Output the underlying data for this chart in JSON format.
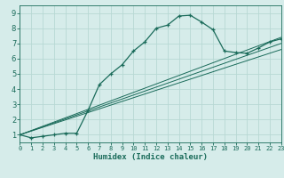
{
  "title": "",
  "xlabel": "Humidex (Indice chaleur)",
  "bg_color": "#d6ecea",
  "grid_color": "#b8d8d4",
  "line_color": "#1a6b5a",
  "xlim": [
    0,
    23
  ],
  "ylim": [
    0.5,
    9.5
  ],
  "xticks": [
    0,
    1,
    2,
    3,
    4,
    5,
    6,
    7,
    8,
    9,
    10,
    11,
    12,
    13,
    14,
    15,
    16,
    17,
    18,
    19,
    20,
    21,
    22,
    23
  ],
  "yticks": [
    1,
    2,
    3,
    4,
    5,
    6,
    7,
    8,
    9
  ],
  "main_x": [
    0,
    1,
    2,
    3,
    4,
    5,
    6,
    7,
    8,
    9,
    10,
    11,
    12,
    13,
    14,
    15,
    16,
    17,
    18,
    19,
    20,
    21,
    22,
    23
  ],
  "main_y": [
    1.0,
    0.8,
    0.9,
    1.0,
    1.1,
    1.1,
    2.6,
    4.3,
    5.0,
    5.6,
    6.5,
    7.1,
    8.0,
    8.2,
    8.8,
    8.85,
    8.4,
    7.9,
    6.5,
    6.4,
    6.35,
    6.7,
    7.1,
    7.3
  ],
  "line1_x": [
    0,
    23
  ],
  "line1_y": [
    1.0,
    7.4
  ],
  "line2_x": [
    0,
    23
  ],
  "line2_y": [
    1.0,
    7.0
  ],
  "line3_x": [
    0,
    23
  ],
  "line3_y": [
    1.0,
    6.6
  ]
}
